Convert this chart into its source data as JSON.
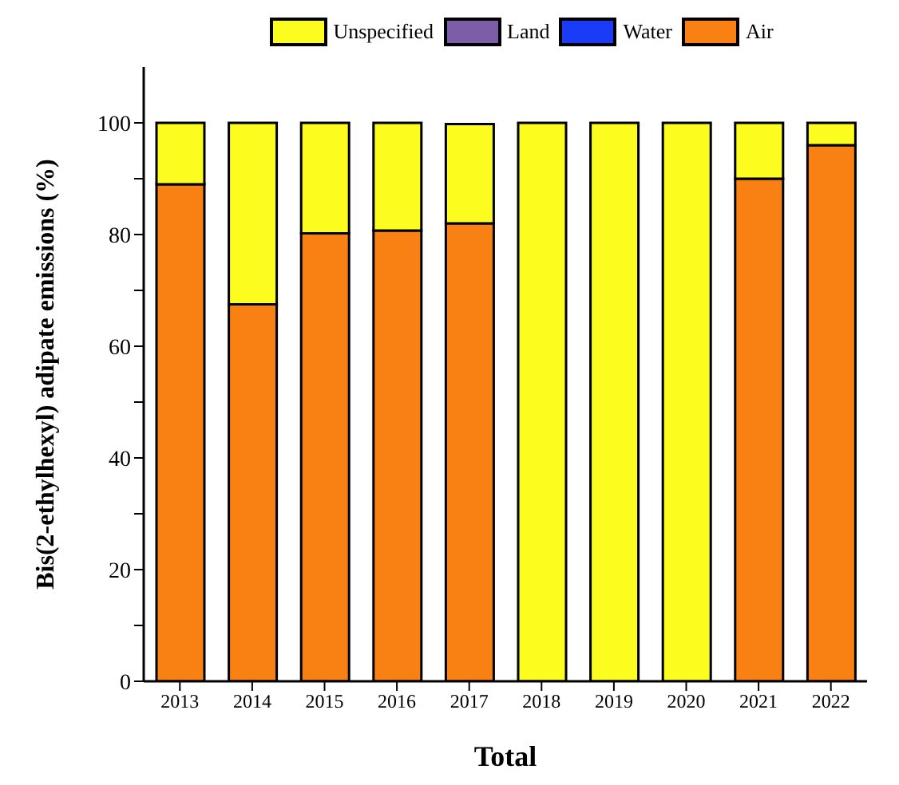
{
  "chart_data": {
    "type": "bar",
    "stacked": true,
    "xlabel": "Total",
    "ylabel": "Bis(2-ethylhexyl) adipate emissions (%)",
    "categories": [
      "2013",
      "2014",
      "2015",
      "2016",
      "2017",
      "2018",
      "2019",
      "2020",
      "2021",
      "2022"
    ],
    "series": [
      {
        "name": "Air",
        "color": "#f98012",
        "values": [
          89,
          67.5,
          80.2,
          80.7,
          82,
          0,
          0,
          0,
          90,
          96
        ]
      },
      {
        "name": "Water",
        "color": "#1b3cf7",
        "values": [
          0,
          0,
          0,
          0,
          0,
          0,
          0,
          0,
          0,
          0
        ]
      },
      {
        "name": "Land",
        "color": "#7b5ea7",
        "values": [
          0,
          0,
          0,
          0,
          0,
          0,
          0,
          0,
          0,
          0
        ]
      },
      {
        "name": "Unspecified",
        "color": "#fcfc1e",
        "values": [
          11,
          32.5,
          19.8,
          19.3,
          17.8,
          100,
          100,
          100,
          10,
          4
        ]
      }
    ],
    "ylim": [
      0,
      110
    ],
    "yticks": [
      0,
      {
        "value": 10,
        "label": null
      },
      20,
      {
        "value": 30,
        "label": null
      },
      40,
      {
        "value": 50,
        "label": null
      },
      60,
      {
        "value": 70,
        "label": null
      },
      80,
      {
        "value": 90,
        "label": null
      },
      100
    ],
    "legend": "top"
  }
}
